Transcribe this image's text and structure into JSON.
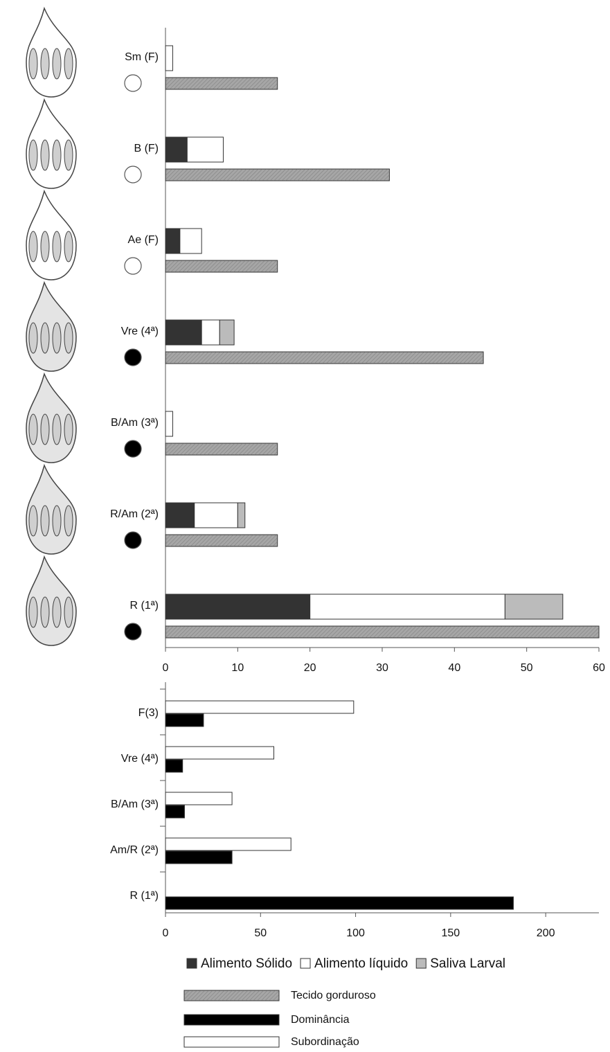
{
  "chart_data": [
    {
      "type": "bar",
      "orientation": "horizontal",
      "categories": [
        "Sm (F)",
        "B (F)",
        "Ae (F)",
        "Vre (4ª)",
        "B/Am (3ª)",
        "R/Am (2ª)",
        "R (1ª)"
      ],
      "series": [
        {
          "name": "Alimento Sólido",
          "color": "#333333",
          "values": [
            0,
            3,
            2,
            5,
            0,
            4,
            20
          ]
        },
        {
          "name": "Alimento líquido",
          "color": "#ffffff",
          "values": [
            1,
            5,
            3,
            2.5,
            1,
            6,
            27
          ]
        },
        {
          "name": "Saliva Larval",
          "color": "#bbbbbb",
          "values": [
            0,
            0,
            0,
            2,
            0,
            1,
            8
          ]
        },
        {
          "name": "Tecido gorduroso",
          "color": "#a6a6a6",
          "values": [
            15.5,
            31,
            15.5,
            44,
            15.5,
            15.5,
            60
          ]
        }
      ],
      "xlim": [
        0,
        60
      ],
      "xticks": [
        0,
        10,
        20,
        30,
        40,
        50,
        60
      ]
    },
    {
      "type": "bar",
      "orientation": "horizontal",
      "categories": [
        "F(3)",
        "Vre (4ª)",
        "B/Am (3ª)",
        "Am/R (2ª)",
        "R (1ª)"
      ],
      "series": [
        {
          "name": "Subordinação",
          "color": "#ffffff",
          "values": [
            99,
            57,
            35,
            66,
            0
          ]
        },
        {
          "name": "Dominância",
          "color": "#000000",
          "values": [
            20,
            9,
            10,
            35,
            183
          ]
        }
      ],
      "xlim": [
        0,
        228
      ],
      "xticks": [
        0,
        50,
        100,
        150,
        200
      ]
    }
  ]
}
